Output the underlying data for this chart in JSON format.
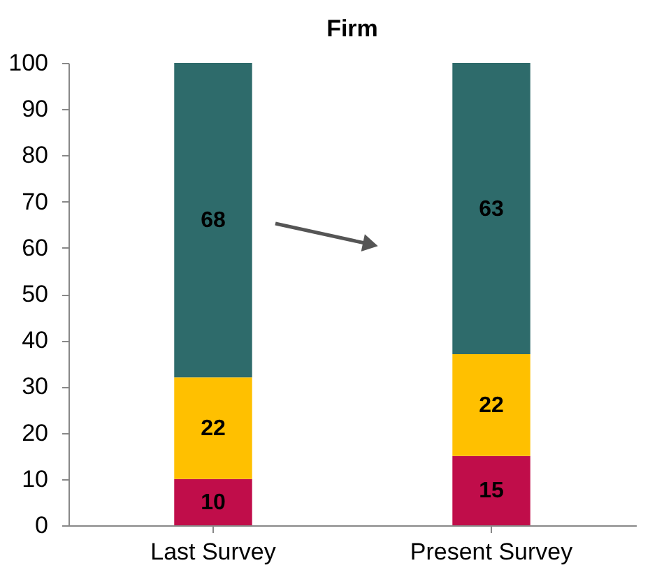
{
  "chart_data": {
    "type": "bar",
    "title": "Firm",
    "stacked": true,
    "data_labels": true,
    "categories": [
      "Last Survey",
      "Present Survey"
    ],
    "series": [
      {
        "color": "#c00d4a",
        "values": [
          10,
          15
        ]
      },
      {
        "color": "#ffc000",
        "values": [
          22,
          22
        ]
      },
      {
        "color": "#2e6b6b",
        "values": [
          68,
          63
        ]
      }
    ],
    "ylim": [
      0,
      100
    ],
    "yticks": [
      0,
      10,
      20,
      30,
      40,
      50,
      60,
      70,
      80,
      90,
      100
    ],
    "grid": false
  }
}
